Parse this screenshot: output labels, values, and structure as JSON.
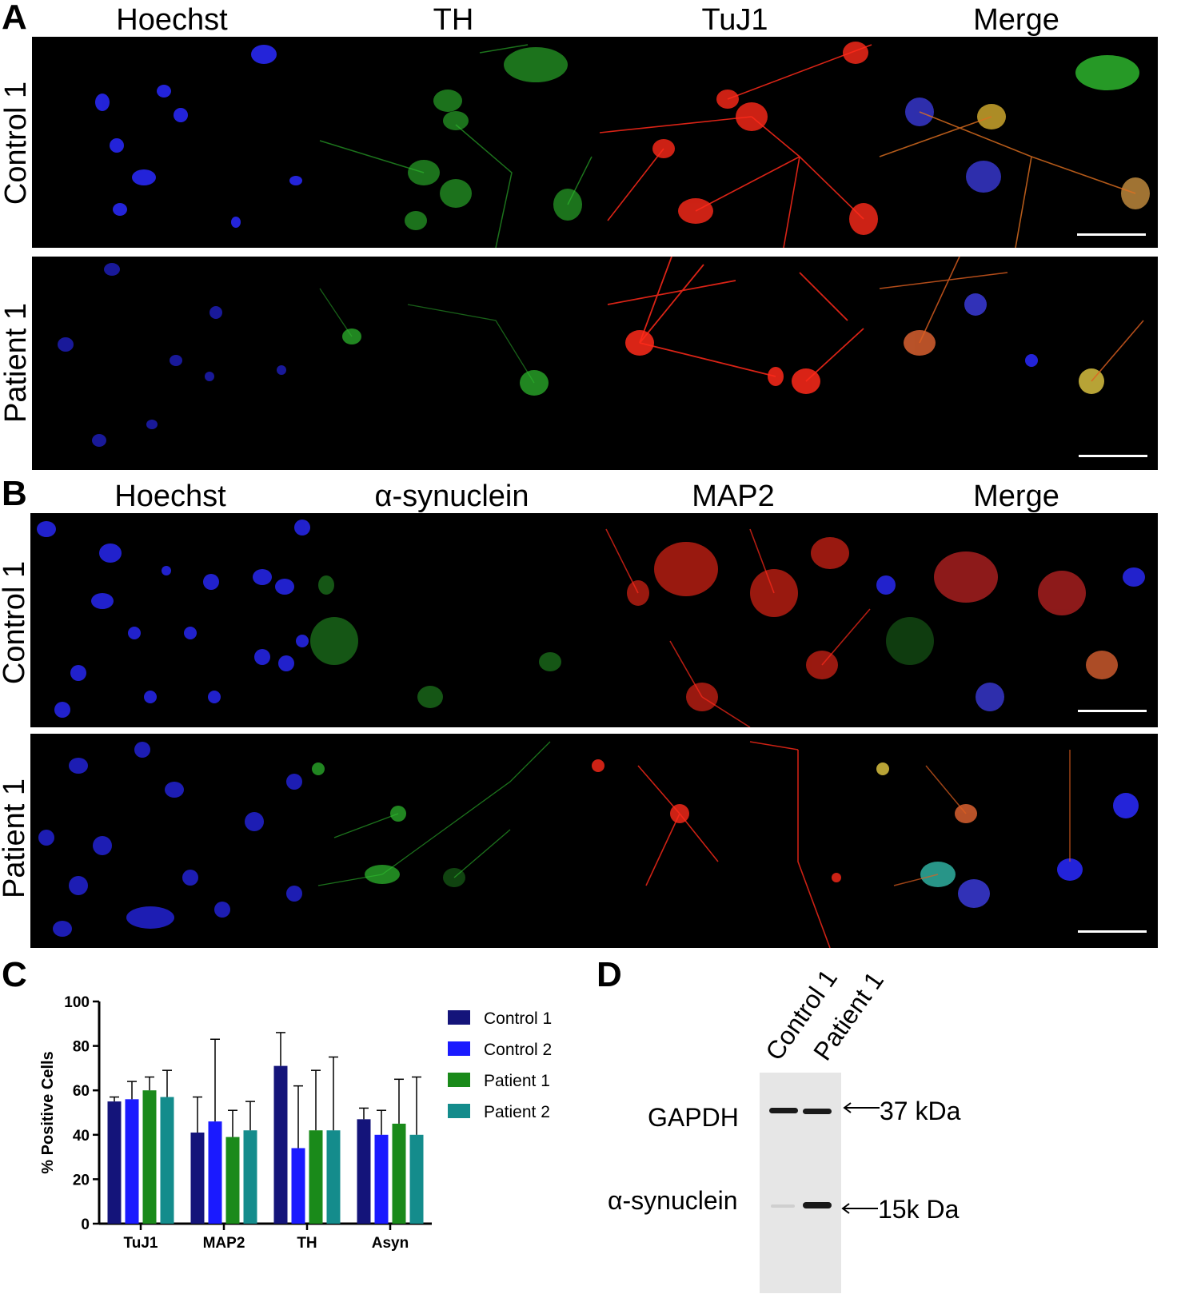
{
  "panels": {
    "A": {
      "letter": "A",
      "columns": [
        "Hoechst",
        "TH",
        "TuJ1",
        "Merge"
      ],
      "rows": [
        "Control 1",
        "Patient 1"
      ]
    },
    "B": {
      "letter": "B",
      "columns": [
        "Hoechst",
        "α-synuclein",
        "MAP2",
        "Merge"
      ],
      "rows": [
        "Control 1",
        "Patient 1"
      ]
    },
    "C": {
      "letter": "C"
    },
    "D": {
      "letter": "D",
      "lanes": [
        "Control 1",
        "Patient 1"
      ],
      "bands": [
        {
          "name": "GAPDH",
          "marker": "37 kDa"
        },
        {
          "name": "α-synuclein",
          "marker": "15k Da"
        }
      ]
    }
  },
  "colors": {
    "hoechst": "#2a2aff",
    "green": "#2fbf2f",
    "red": "#ff2a1a",
    "merge_yellow": "#d8b030"
  },
  "chart_data": {
    "type": "bar",
    "title": "",
    "xlabel": "",
    "ylabel": "% Positive Cells",
    "ylim": [
      0,
      100
    ],
    "yticks": [
      0,
      20,
      40,
      60,
      80,
      100
    ],
    "categories": [
      "TuJ1",
      "MAP2",
      "TH",
      "Asyn"
    ],
    "legend": "right",
    "series": [
      {
        "name": "Control 1",
        "color": "#14147a",
        "values": [
          55,
          41,
          71,
          47
        ],
        "errors": [
          2,
          16,
          15,
          5
        ]
      },
      {
        "name": "Control 2",
        "color": "#1a1aff",
        "values": [
          56,
          46,
          34,
          40
        ],
        "errors": [
          8,
          37,
          28,
          11
        ]
      },
      {
        "name": "Patient 1",
        "color": "#1a8a1a",
        "values": [
          60,
          39,
          42,
          45
        ],
        "errors": [
          6,
          12,
          27,
          20
        ]
      },
      {
        "name": "Patient 2",
        "color": "#148c8c",
        "values": [
          57,
          42,
          42,
          40
        ],
        "errors": [
          12,
          13,
          33,
          26
        ]
      }
    ]
  }
}
